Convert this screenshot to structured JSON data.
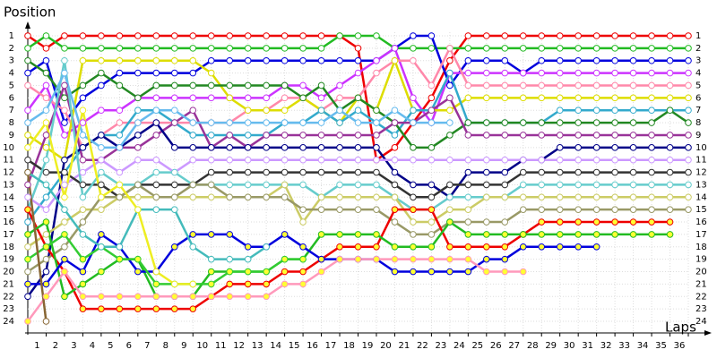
{
  "chart_data": {
    "type": "line",
    "y_label": "Position",
    "x_label": "Laps",
    "xlim": [
      0,
      36
    ],
    "xticks": [
      1,
      2,
      3,
      4,
      5,
      6,
      7,
      8,
      9,
      10,
      11,
      12,
      13,
      14,
      15,
      16,
      17,
      18,
      19,
      20,
      21,
      22,
      23,
      24,
      25,
      26,
      27,
      28,
      29,
      30,
      31,
      32,
      33,
      34,
      35,
      36
    ],
    "ylim": [
      1,
      24
    ],
    "y_inverted": true,
    "yticks": [
      1,
      2,
      3,
      4,
      5,
      6,
      7,
      8,
      9,
      10,
      11,
      12,
      13,
      14,
      15,
      16,
      17,
      18,
      19,
      20,
      21,
      22,
      23,
      24
    ],
    "grid": true,
    "series": [
      {
        "color": "#ee0000",
        "marker_color": "#ffffff",
        "values": [
          1,
          2,
          1,
          1,
          1,
          1,
          1,
          1,
          1,
          1,
          1,
          1,
          1,
          1,
          1,
          1,
          1,
          1,
          2,
          11,
          10,
          8,
          6,
          3,
          1,
          1,
          1,
          1,
          1,
          1,
          1,
          1,
          1,
          1,
          1,
          1,
          1
        ]
      },
      {
        "color": "#22bb22",
        "marker_color": "#ffffff",
        "values": [
          2,
          1,
          2,
          2,
          2,
          2,
          2,
          2,
          2,
          2,
          2,
          2,
          2,
          2,
          2,
          2,
          2,
          1,
          1,
          1,
          2,
          2,
          2,
          2,
          2,
          2,
          2,
          2,
          2,
          2,
          2,
          2,
          2,
          2,
          2,
          2,
          2
        ]
      },
      {
        "color": "#0000dd",
        "marker_color": "#ffffff",
        "values": [
          4,
          3,
          8,
          6,
          5,
          4,
          4,
          4,
          4,
          4,
          3,
          3,
          3,
          3,
          3,
          3,
          3,
          3,
          3,
          3,
          2,
          1,
          1,
          5,
          3,
          3,
          3,
          4,
          3,
          3,
          3,
          3,
          3,
          3,
          3,
          3,
          3
        ]
      },
      {
        "color": "#cc33ff",
        "marker_color": "#ffffff",
        "values": [
          7,
          5,
          9,
          8,
          7,
          7,
          6,
          6,
          6,
          6,
          6,
          6,
          6,
          6,
          5,
          5,
          6,
          5,
          4,
          3,
          2,
          6,
          8,
          4,
          4,
          4,
          4,
          4,
          4,
          4,
          4,
          4,
          4,
          4,
          4,
          4,
          4
        ]
      },
      {
        "color": "#ff88aa",
        "marker_color": "#ffffff",
        "values": [
          5,
          6,
          7,
          10,
          9,
          8,
          8,
          8,
          8,
          8,
          8,
          8,
          7,
          7,
          6,
          6,
          7,
          6,
          6,
          4,
          3,
          3,
          5,
          2,
          5,
          5,
          5,
          5,
          5,
          5,
          5,
          5,
          5,
          5,
          5,
          5,
          5
        ]
      },
      {
        "color": "#dddd00",
        "marker_color": "#ffffff",
        "values": [
          9,
          10,
          11,
          3,
          3,
          3,
          3,
          3,
          3,
          3,
          4,
          6,
          7,
          7,
          7,
          6,
          7,
          8,
          6,
          7,
          3,
          7,
          7,
          7,
          6,
          6,
          6,
          6,
          6,
          6,
          6,
          6,
          6,
          6,
          6,
          6,
          6
        ]
      },
      {
        "color": "#33aacc",
        "marker_color": "#ffffff",
        "values": [
          16,
          14,
          12,
          10,
          9,
          9,
          7,
          7,
          8,
          9,
          9,
          9,
          9,
          9,
          8,
          8,
          7,
          8,
          7,
          8,
          9,
          7,
          7,
          4,
          8,
          8,
          8,
          8,
          8,
          7,
          7,
          7,
          7,
          7,
          7,
          7,
          7
        ]
      },
      {
        "color": "#228822",
        "marker_color": "#ffffff",
        "values": [
          3,
          4,
          6,
          5,
          4,
          5,
          6,
          5,
          5,
          5,
          5,
          5,
          5,
          5,
          5,
          6,
          5,
          7,
          6,
          7,
          8,
          10,
          10,
          9,
          8,
          8,
          8,
          8,
          8,
          8,
          8,
          8,
          8,
          8,
          8,
          7,
          8
        ]
      },
      {
        "color": "#993399",
        "marker_color": "#ffffff",
        "values": [
          13,
          9,
          5,
          11,
          11,
          10,
          10,
          9,
          8,
          7,
          10,
          9,
          10,
          9,
          9,
          9,
          9,
          9,
          9,
          9,
          8,
          8,
          7,
          6,
          9,
          9,
          9,
          9,
          9,
          9,
          9,
          9,
          9,
          9,
          9,
          9,
          9
        ]
      },
      {
        "color": "#000088",
        "marker_color": "#ffffff",
        "values": [
          22,
          20,
          11,
          10,
          9,
          10,
          9,
          8,
          10,
          10,
          10,
          10,
          10,
          10,
          10,
          10,
          10,
          10,
          10,
          10,
          12,
          13,
          13,
          14,
          12,
          12,
          12,
          11,
          11,
          10,
          10,
          10,
          10,
          10,
          10,
          10,
          10
        ]
      },
      {
        "color": "#cc99ff",
        "marker_color": "#ffffff",
        "values": [
          14,
          15,
          13,
          12,
          11,
          12,
          11,
          11,
          12,
          11,
          11,
          11,
          11,
          11,
          11,
          11,
          11,
          11,
          11,
          11,
          11,
          11,
          11,
          11,
          11,
          11,
          11,
          11,
          11,
          11,
          11,
          11,
          11,
          11,
          11,
          11,
          11
        ]
      },
      {
        "color": "#333333",
        "marker_color": "#ffffff",
        "values": [
          11,
          12,
          12,
          13,
          13,
          14,
          13,
          13,
          13,
          13,
          12,
          12,
          12,
          12,
          12,
          12,
          12,
          12,
          12,
          12,
          13,
          14,
          14,
          13,
          13,
          13,
          13,
          12,
          12,
          12,
          12,
          12,
          12,
          12,
          12,
          12,
          12
        ]
      },
      {
        "color": "#66cccc",
        "marker_color": "#ffffff",
        "values": [
          15,
          11,
          3,
          14,
          12,
          13,
          13,
          12,
          12,
          13,
          13,
          13,
          13,
          13,
          13,
          13,
          14,
          13,
          13,
          13,
          14,
          15,
          15,
          14,
          14,
          14,
          14,
          13,
          13,
          13,
          13,
          13,
          13,
          13,
          13,
          13,
          13
        ]
      },
      {
        "color": "#cccc66",
        "marker_color": "#ffffff",
        "values": [
          18,
          17,
          16,
          15,
          15,
          14,
          14,
          14,
          14,
          14,
          14,
          14,
          14,
          14,
          13,
          16,
          14,
          14,
          14,
          14,
          14,
          16,
          16,
          15,
          15,
          14,
          14,
          14,
          14,
          14,
          14,
          14,
          14,
          14,
          14,
          14,
          14
        ]
      },
      {
        "color": "#999966",
        "marker_color": "#ffffff",
        "values": [
          20,
          19,
          18,
          16,
          14,
          14,
          13,
          14,
          14,
          13,
          13,
          14,
          14,
          14,
          14,
          15,
          15,
          15,
          15,
          15,
          16,
          17,
          17,
          16,
          16,
          16,
          16,
          15,
          15,
          15,
          15,
          15,
          15,
          15,
          15,
          15,
          15
        ]
      },
      {
        "color": "#ee0000",
        "marker_color": "#ffff33",
        "values": [
          15,
          18,
          20,
          23,
          23,
          23,
          23,
          23,
          23,
          23,
          22,
          21,
          21,
          21,
          20,
          20,
          19,
          18,
          18,
          18,
          15,
          15,
          15,
          18,
          18,
          18,
          18,
          17,
          16,
          16,
          16,
          16,
          16,
          16,
          16,
          16,
          null
        ]
      },
      {
        "color": "#22bb22",
        "marker_color": "#ffff33",
        "values": [
          17,
          16,
          22,
          21,
          20,
          19,
          19,
          22,
          22,
          22,
          20,
          20,
          20,
          20,
          19,
          19,
          17,
          17,
          17,
          17,
          18,
          18,
          18,
          16,
          17,
          17,
          17,
          17,
          17,
          17,
          17,
          17,
          17,
          17,
          17,
          17,
          null
        ]
      },
      {
        "color": "#0000dd",
        "marker_color": "#ffff33",
        "values": [
          21,
          21,
          19,
          20,
          17,
          18,
          20,
          20,
          18,
          17,
          17,
          17,
          18,
          18,
          17,
          18,
          19,
          19,
          19,
          19,
          20,
          20,
          20,
          20,
          20,
          19,
          19,
          18,
          18,
          18,
          18,
          18,
          null,
          null,
          null,
          null,
          null
        ]
      },
      {
        "color": "#ff99bb",
        "marker_color": "#ffff33",
        "values": [
          24,
          22,
          20,
          22,
          22,
          22,
          22,
          22,
          22,
          22,
          22,
          22,
          22,
          22,
          21,
          21,
          20,
          19,
          19,
          19,
          19,
          19,
          19,
          19,
          19,
          20,
          20,
          20,
          null,
          null,
          null,
          null,
          null,
          null,
          null,
          null,
          null
        ]
      },
      {
        "color": "#33cc33",
        "marker_color": "#ffff33",
        "values": [
          19,
          18,
          17,
          19,
          18,
          19,
          19,
          21,
          21,
          21,
          21,
          20,
          20,
          20,
          19,
          19,
          null,
          null,
          null,
          null,
          null,
          null,
          null,
          null,
          null,
          null,
          null,
          null,
          null,
          null,
          null,
          null,
          null,
          null,
          null,
          null,
          null
        ]
      },
      {
        "color": "#66bbee",
        "marker_color": "#ffffff",
        "values": [
          8,
          7,
          4,
          9,
          10,
          10,
          8,
          7,
          7,
          8,
          8,
          8,
          8,
          8,
          8,
          8,
          8,
          7,
          8,
          8,
          7,
          8,
          8,
          8,
          null,
          null,
          null,
          null,
          null,
          null,
          null,
          null,
          null,
          null,
          null,
          null,
          null
        ]
      },
      {
        "color": "#44bbbb",
        "marker_color": "#ffffff",
        "values": [
          12,
          13,
          15,
          17,
          18,
          18,
          15,
          15,
          15,
          18,
          19,
          19,
          19,
          18,
          null,
          null,
          null,
          null,
          null,
          null,
          null,
          null,
          null,
          null,
          null,
          null,
          null,
          null,
          null,
          null,
          null,
          null,
          null,
          null,
          null,
          null,
          null
        ]
      },
      {
        "color": "#eeee22",
        "marker_color": "#ffffff",
        "values": [
          10,
          8,
          14,
          7,
          14,
          13,
          15,
          20,
          21,
          21,
          null,
          null,
          null,
          null,
          null,
          null,
          null,
          null,
          null,
          null,
          null,
          null,
          null,
          null,
          null,
          null,
          null,
          null,
          null,
          null,
          null,
          null,
          null,
          null,
          null,
          null,
          null
        ]
      },
      {
        "color": "#886633",
        "marker_color": "#ffffff",
        "values": [
          12,
          24,
          null,
          null,
          null,
          null,
          null,
          null,
          null,
          null,
          null,
          null,
          null,
          null,
          null,
          null,
          null,
          null,
          null,
          null,
          null,
          null,
          null,
          null,
          null,
          null,
          null,
          null,
          null,
          null,
          null,
          null,
          null,
          null,
          null,
          null,
          null
        ]
      }
    ]
  }
}
